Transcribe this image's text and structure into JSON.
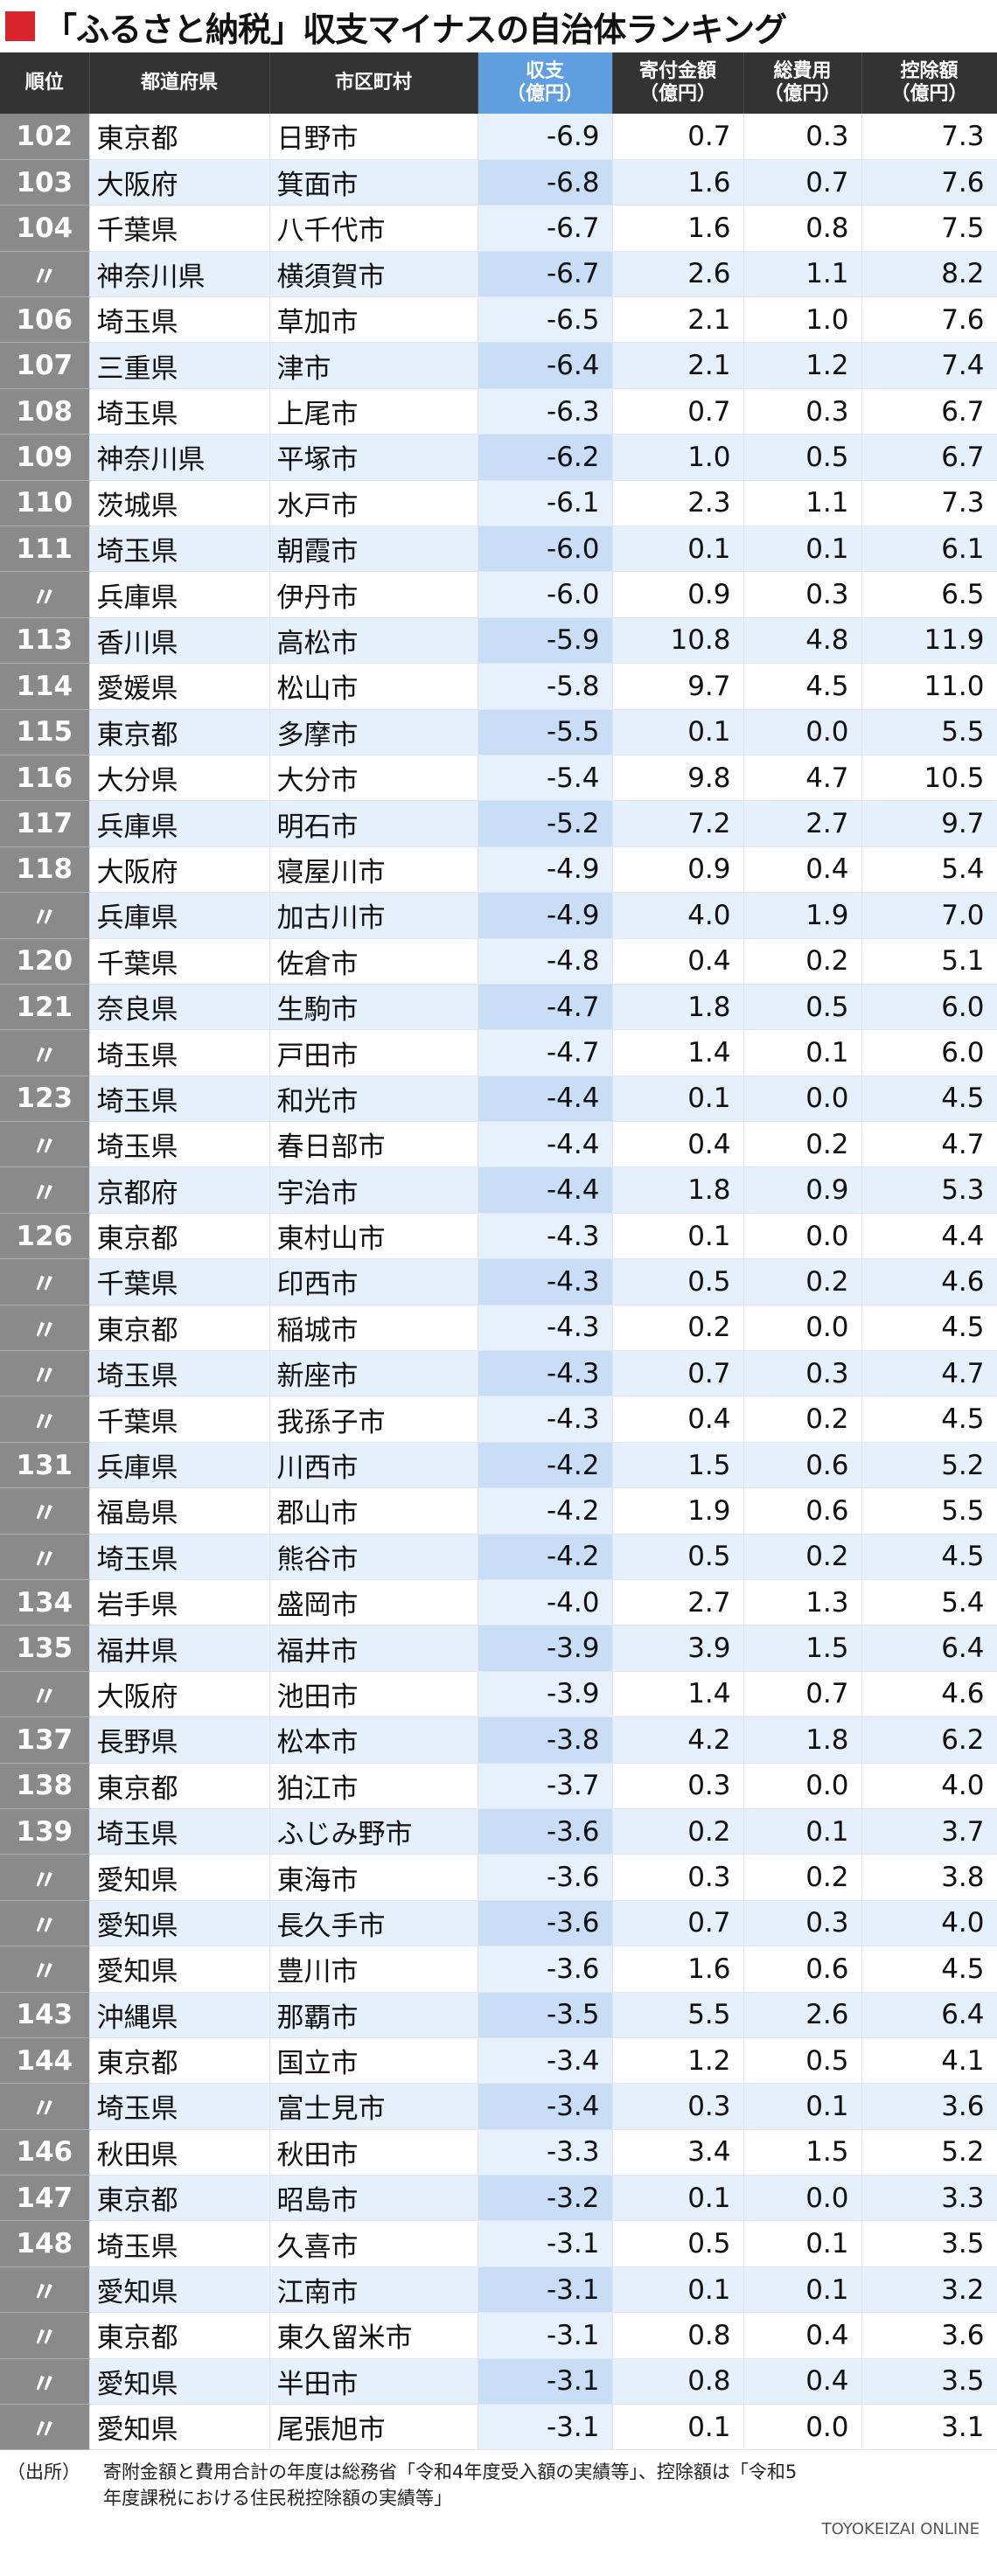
{
  "title": "「ふるさと納税」収支マイナスの自治体ランキング",
  "colors": {
    "accent": "#d9232d",
    "header_bg": "#333333",
    "highlight_header": "#5f9fe0"
  },
  "headers": {
    "rank": "順位",
    "pref": "都道府県",
    "city": "市区町村",
    "balance": [
      "収支",
      "（億円）"
    ],
    "donations": [
      "寄付金額",
      "（億円）"
    ],
    "costs": [
      "総費用",
      "（億円）"
    ],
    "deduction": [
      "控除額",
      "（億円）"
    ]
  },
  "rows": [
    [
      "102",
      "東京都",
      "日野市",
      "-6.9",
      "0.7",
      "0.3",
      "7.3"
    ],
    [
      "103",
      "大阪府",
      "箕面市",
      "-6.8",
      "1.6",
      "0.7",
      "7.6"
    ],
    [
      "104",
      "千葉県",
      "八千代市",
      "-6.7",
      "1.6",
      "0.8",
      "7.5"
    ],
    [
      "〃",
      "神奈川県",
      "横須賀市",
      "-6.7",
      "2.6",
      "1.1",
      "8.2"
    ],
    [
      "106",
      "埼玉県",
      "草加市",
      "-6.5",
      "2.1",
      "1.0",
      "7.6"
    ],
    [
      "107",
      "三重県",
      "津市",
      "-6.4",
      "2.1",
      "1.2",
      "7.4"
    ],
    [
      "108",
      "埼玉県",
      "上尾市",
      "-6.3",
      "0.7",
      "0.3",
      "6.7"
    ],
    [
      "109",
      "神奈川県",
      "平塚市",
      "-6.2",
      "1.0",
      "0.5",
      "6.7"
    ],
    [
      "110",
      "茨城県",
      "水戸市",
      "-6.1",
      "2.3",
      "1.1",
      "7.3"
    ],
    [
      "111",
      "埼玉県",
      "朝霞市",
      "-6.0",
      "0.1",
      "0.1",
      "6.1"
    ],
    [
      "〃",
      "兵庫県",
      "伊丹市",
      "-6.0",
      "0.9",
      "0.3",
      "6.5"
    ],
    [
      "113",
      "香川県",
      "高松市",
      "-5.9",
      "10.8",
      "4.8",
      "11.9"
    ],
    [
      "114",
      "愛媛県",
      "松山市",
      "-5.8",
      "9.7",
      "4.5",
      "11.0"
    ],
    [
      "115",
      "東京都",
      "多摩市",
      "-5.5",
      "0.1",
      "0.0",
      "5.5"
    ],
    [
      "116",
      "大分県",
      "大分市",
      "-5.4",
      "9.8",
      "4.7",
      "10.5"
    ],
    [
      "117",
      "兵庫県",
      "明石市",
      "-5.2",
      "7.2",
      "2.7",
      "9.7"
    ],
    [
      "118",
      "大阪府",
      "寝屋川市",
      "-4.9",
      "0.9",
      "0.4",
      "5.4"
    ],
    [
      "〃",
      "兵庫県",
      "加古川市",
      "-4.9",
      "4.0",
      "1.9",
      "7.0"
    ],
    [
      "120",
      "千葉県",
      "佐倉市",
      "-4.8",
      "0.4",
      "0.2",
      "5.1"
    ],
    [
      "121",
      "奈良県",
      "生駒市",
      "-4.7",
      "1.8",
      "0.5",
      "6.0"
    ],
    [
      "〃",
      "埼玉県",
      "戸田市",
      "-4.7",
      "1.4",
      "0.1",
      "6.0"
    ],
    [
      "123",
      "埼玉県",
      "和光市",
      "-4.4",
      "0.1",
      "0.0",
      "4.5"
    ],
    [
      "〃",
      "埼玉県",
      "春日部市",
      "-4.4",
      "0.4",
      "0.2",
      "4.7"
    ],
    [
      "〃",
      "京都府",
      "宇治市",
      "-4.4",
      "1.8",
      "0.9",
      "5.3"
    ],
    [
      "126",
      "東京都",
      "東村山市",
      "-4.3",
      "0.1",
      "0.0",
      "4.4"
    ],
    [
      "〃",
      "千葉県",
      "印西市",
      "-4.3",
      "0.5",
      "0.2",
      "4.6"
    ],
    [
      "〃",
      "東京都",
      "稲城市",
      "-4.3",
      "0.2",
      "0.0",
      "4.5"
    ],
    [
      "〃",
      "埼玉県",
      "新座市",
      "-4.3",
      "0.7",
      "0.3",
      "4.7"
    ],
    [
      "〃",
      "千葉県",
      "我孫子市",
      "-4.3",
      "0.4",
      "0.2",
      "4.5"
    ],
    [
      "131",
      "兵庫県",
      "川西市",
      "-4.2",
      "1.5",
      "0.6",
      "5.2"
    ],
    [
      "〃",
      "福島県",
      "郡山市",
      "-4.2",
      "1.9",
      "0.6",
      "5.5"
    ],
    [
      "〃",
      "埼玉県",
      "熊谷市",
      "-4.2",
      "0.5",
      "0.2",
      "4.5"
    ],
    [
      "134",
      "岩手県",
      "盛岡市",
      "-4.0",
      "2.7",
      "1.3",
      "5.4"
    ],
    [
      "135",
      "福井県",
      "福井市",
      "-3.9",
      "3.9",
      "1.5",
      "6.4"
    ],
    [
      "〃",
      "大阪府",
      "池田市",
      "-3.9",
      "1.4",
      "0.7",
      "4.6"
    ],
    [
      "137",
      "長野県",
      "松本市",
      "-3.8",
      "4.2",
      "1.8",
      "6.2"
    ],
    [
      "138",
      "東京都",
      "狛江市",
      "-3.7",
      "0.3",
      "0.0",
      "4.0"
    ],
    [
      "139",
      "埼玉県",
      "ふじみ野市",
      "-3.6",
      "0.2",
      "0.1",
      "3.7"
    ],
    [
      "〃",
      "愛知県",
      "東海市",
      "-3.6",
      "0.3",
      "0.2",
      "3.8"
    ],
    [
      "〃",
      "愛知県",
      "長久手市",
      "-3.6",
      "0.7",
      "0.3",
      "4.0"
    ],
    [
      "〃",
      "愛知県",
      "豊川市",
      "-3.6",
      "1.6",
      "0.6",
      "4.5"
    ],
    [
      "143",
      "沖縄県",
      "那覇市",
      "-3.5",
      "5.5",
      "2.6",
      "6.4"
    ],
    [
      "144",
      "東京都",
      "国立市",
      "-3.4",
      "1.2",
      "0.5",
      "4.1"
    ],
    [
      "〃",
      "埼玉県",
      "富士見市",
      "-3.4",
      "0.3",
      "0.1",
      "3.6"
    ],
    [
      "146",
      "秋田県",
      "秋田市",
      "-3.3",
      "3.4",
      "1.5",
      "5.2"
    ],
    [
      "147",
      "東京都",
      "昭島市",
      "-3.2",
      "0.1",
      "0.0",
      "3.3"
    ],
    [
      "148",
      "埼玉県",
      "久喜市",
      "-3.1",
      "0.5",
      "0.1",
      "3.5"
    ],
    [
      "〃",
      "愛知県",
      "江南市",
      "-3.1",
      "0.1",
      "0.1",
      "3.2"
    ],
    [
      "〃",
      "東京都",
      "東久留米市",
      "-3.1",
      "0.8",
      "0.4",
      "3.6"
    ],
    [
      "〃",
      "愛知県",
      "半田市",
      "-3.1",
      "0.8",
      "0.4",
      "3.5"
    ],
    [
      "〃",
      "愛知県",
      "尾張旭市",
      "-3.1",
      "0.1",
      "0.0",
      "3.1"
    ]
  ],
  "footer": {
    "label": "（出所）",
    "source_line1": "寄附金額と費用合計の年度は総務省「令和4年度受入額の実績等」、控除額は「令和5",
    "source_line2": "年度課税における住民税控除額の実績等」",
    "credit": "TOYOKEIZAI ONLINE"
  }
}
